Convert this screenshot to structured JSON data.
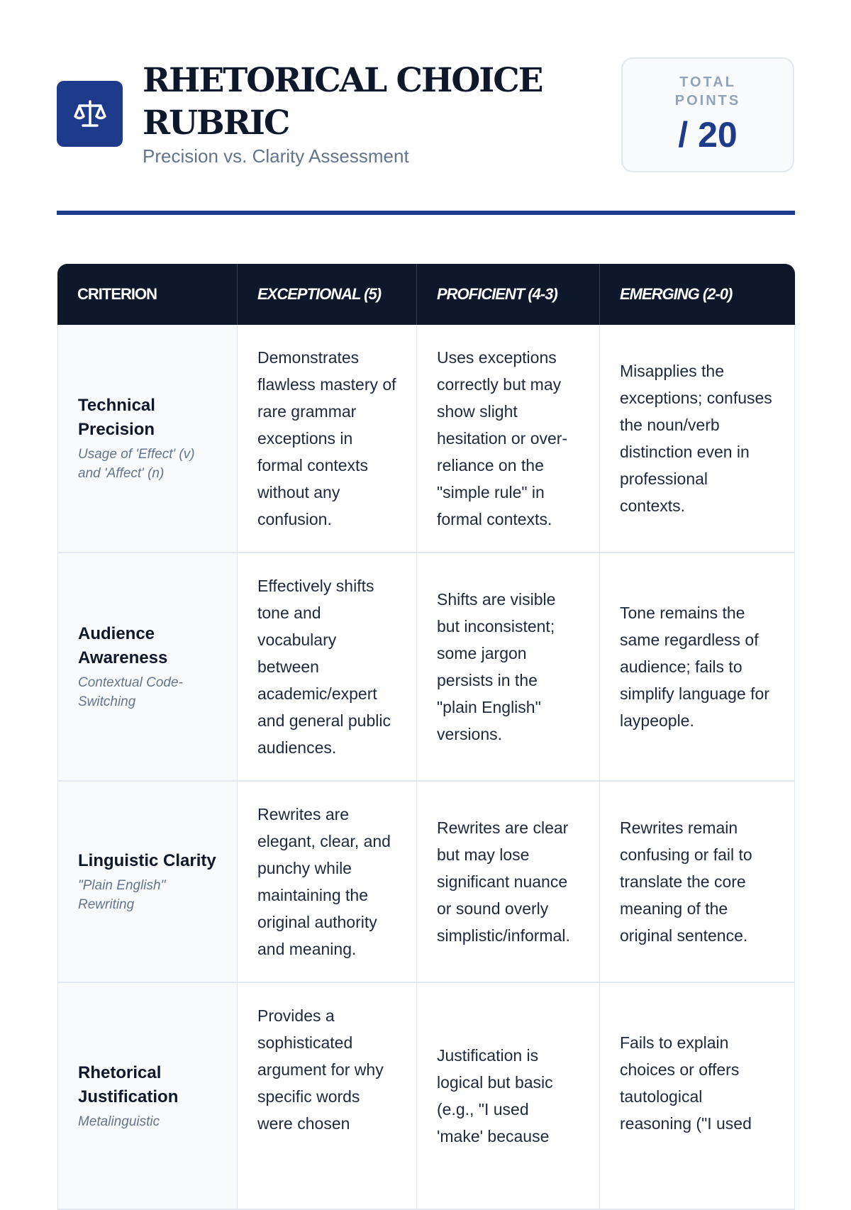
{
  "header": {
    "icon": "scale-balance-icon",
    "title": "RHETORICAL CHOICE RUBRIC",
    "subtitle": "Precision vs. Clarity Assessment",
    "points_label": "TOTAL POINTS",
    "points_value": "/ 20",
    "accent": "#1e3a8a"
  },
  "table": {
    "columns": [
      "CRITERION",
      "EXCEPTIONAL (5)",
      "PROFICIENT (4-3)",
      "EMERGING (2-0)"
    ],
    "rows": [
      {
        "name": "Technical Precision",
        "sub": "Usage of 'Effect' (v) and 'Affect' (n)",
        "exceptional": "Demonstrates flawless mastery of rare grammar exceptions in formal contexts without any confusion.",
        "proficient": "Uses exceptions correctly but may show slight hesitation or over-reliance on the \"simple rule\" in formal contexts.",
        "emerging": "Misapplies the exceptions; confuses the noun/verb distinction even in professional contexts."
      },
      {
        "name": "Audience Awareness",
        "sub": "Contextual Code-Switching",
        "exceptional": "Effectively shifts tone and vocabulary between academic/expert and general public audiences.",
        "proficient": "Shifts are visible but inconsistent; some jargon persists in the \"plain English\" versions.",
        "emerging": "Tone remains the same regardless of audience; fails to simplify language for laypeople."
      },
      {
        "name": "Linguistic Clarity",
        "sub": "\"Plain English\" Rewriting",
        "exceptional": "Rewrites are elegant, clear, and punchy while maintaining the original authority and meaning.",
        "proficient": "Rewrites are clear but may lose significant nuance or sound overly simplistic/informal.",
        "emerging": "Rewrites remain confusing or fail to translate the core meaning of the original sentence."
      },
      {
        "name": "Rhetorical Justification",
        "sub": "Metalinguistic",
        "exceptional": "Provides a sophisticated argument for why specific words were chosen",
        "proficient": "Justification is logical but basic (e.g., \"I used 'make' because",
        "emerging": "Fails to explain choices or offers tautological reasoning (\"I used"
      }
    ]
  }
}
